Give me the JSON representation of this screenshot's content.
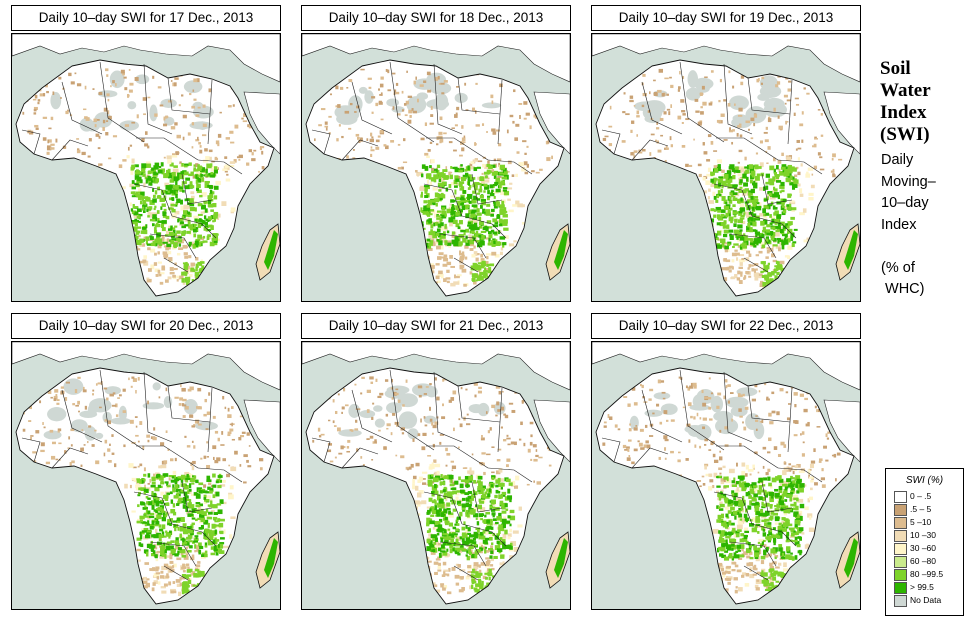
{
  "panels": [
    {
      "title": "Daily 10–day SWI for  17 Dec., 2013"
    },
    {
      "title": "Daily 10–day SWI for  18 Dec., 2013"
    },
    {
      "title": "Daily 10–day SWI for  19 Dec., 2013"
    },
    {
      "title": "Daily 10–day SWI for  20 Dec., 2013"
    },
    {
      "title": "Daily 10–day SWI for  21 Dec., 2013"
    },
    {
      "title": "Daily 10–day SWI for  22 Dec., 2013"
    }
  ],
  "side": {
    "title_lines": [
      "Soil",
      "Water",
      "Index",
      "(SWI)"
    ],
    "desc_lines": [
      "Daily",
      "Moving–",
      "10–day",
      "Index",
      "",
      "(% of",
      " WHC)"
    ]
  },
  "legend": {
    "title": "SWI (%)",
    "items": [
      {
        "label": "0 – .5",
        "color": "#ffffff"
      },
      {
        "label": ".5 – 5",
        "color": "#c9a274"
      },
      {
        "label": "5 –10",
        "color": "#ddbc8f"
      },
      {
        "label": "10 –30",
        "color": "#f1dcb6"
      },
      {
        "label": "30 –60",
        "color": "#fff5c9"
      },
      {
        "label": "60 –80",
        "color": "#caeb8c"
      },
      {
        "label": "80 –99.5",
        "color": "#7ed32a"
      },
      {
        "label": "> 99.5",
        "color": "#2db500"
      },
      {
        "label": "No Data",
        "color": "#cfd8d4"
      }
    ]
  },
  "colors": {
    "ocean": "#d2e0d9",
    "land": "#ffffff",
    "dry": "#ddbc8f",
    "very_dry": "#c9a274",
    "moderate": "#f1dcb6",
    "wet": "#7ed32a",
    "saturated": "#2db500",
    "nodata": "#cfd8d4"
  }
}
